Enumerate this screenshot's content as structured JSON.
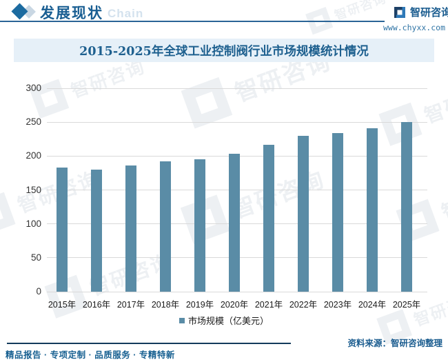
{
  "header": {
    "section_title": "发展现状",
    "section_subtitle": "Chain",
    "brand_name": "智研咨询",
    "brand_url": "www.chyxx.com"
  },
  "icons": {
    "section_marker": "diamond-icon",
    "brand_logo": "zhiyan-logo-icon"
  },
  "chart_data": {
    "type": "bar",
    "title": "2015-2025年全球工业控制阀行业市场规模统计情况",
    "categories": [
      "2015年",
      "2016年",
      "2017年",
      "2018年",
      "2019年",
      "2020年",
      "2021年",
      "2022年",
      "2023年",
      "2024年",
      "2025年"
    ],
    "values": [
      183,
      180,
      186,
      192,
      195,
      203,
      217,
      230,
      234,
      241,
      250
    ],
    "legend_label": "市场规模（亿美元）",
    "xlabel": "",
    "ylabel": "",
    "ylim": [
      0,
      300
    ],
    "yticks": [
      0,
      50,
      100,
      150,
      200,
      250,
      300
    ],
    "grid": true,
    "legend_position": "bottom",
    "bar_color": "#5a8ca6",
    "grid_color": "#d9d9d9"
  },
  "footer": {
    "source": "资料来源：智研咨询整理",
    "tagline": "精品报告 · 专项定制 · 品质服务 · 专精特新"
  },
  "watermark": {
    "text": "智研咨询"
  }
}
